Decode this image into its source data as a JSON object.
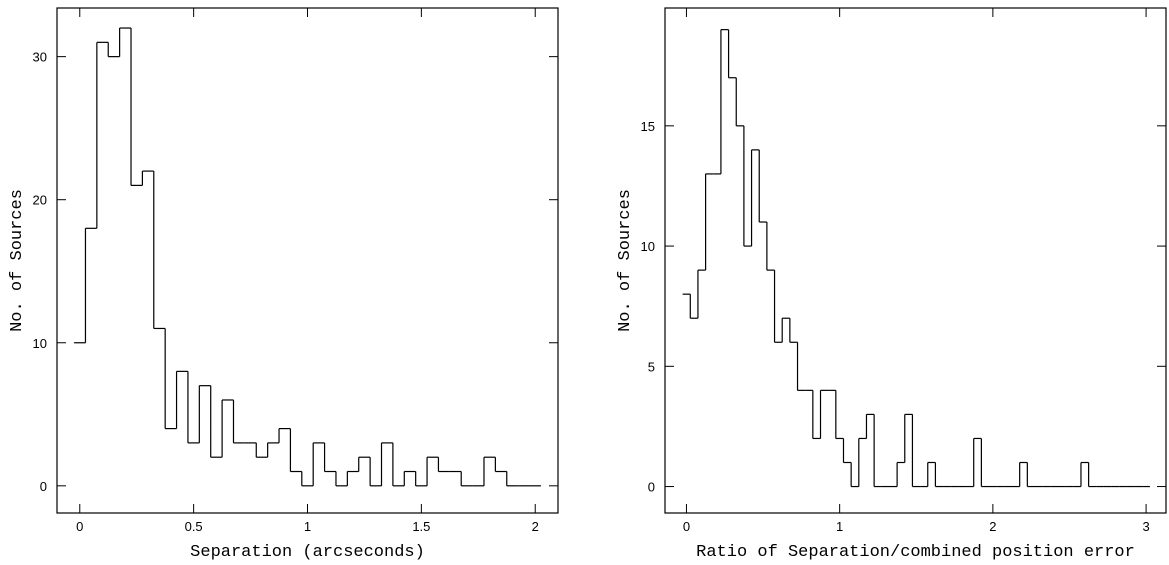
{
  "chart_data": [
    {
      "type": "histogram",
      "xlabel": "Separation (arcseconds)",
      "ylabel": "No. of Sources",
      "color": "#000000",
      "bins": [
        -0.025,
        0.025,
        0.075,
        0.125,
        0.175,
        0.225,
        0.275,
        0.325,
        0.375,
        0.425,
        0.475,
        0.525,
        0.575,
        0.625,
        0.675,
        0.725,
        0.775,
        0.825,
        0.875,
        0.925,
        0.975,
        1.025,
        1.075,
        1.125,
        1.175,
        1.225,
        1.275,
        1.325,
        1.375,
        1.425,
        1.475,
        1.525,
        1.575,
        1.625,
        1.675,
        1.725,
        1.775,
        1.825,
        1.875,
        1.925,
        1.975,
        2.025
      ],
      "values": [
        10,
        18,
        31,
        30,
        32,
        21,
        22,
        11,
        4,
        8,
        3,
        7,
        2,
        6,
        3,
        3,
        2,
        3,
        4,
        1,
        0,
        3,
        1,
        0,
        1,
        2,
        0,
        3,
        0,
        1,
        0,
        2,
        1,
        1,
        0,
        0,
        2,
        1,
        0,
        0,
        0
      ],
      "xlim": [
        -0.1,
        2.1
      ],
      "ylim": [
        -1.9,
        33.4
      ],
      "xticks": [
        0,
        0.5,
        1,
        1.5,
        2
      ],
      "yticks": [
        0,
        10,
        20,
        30
      ]
    },
    {
      "type": "histogram",
      "xlabel": "Ratio of Separation/combined position error",
      "ylabel": "No. of Sources",
      "color": "#000000",
      "bins": [
        -0.025,
        0.025,
        0.075,
        0.125,
        0.175,
        0.225,
        0.275,
        0.325,
        0.375,
        0.425,
        0.475,
        0.525,
        0.575,
        0.625,
        0.675,
        0.725,
        0.775,
        0.825,
        0.875,
        0.925,
        0.975,
        1.025,
        1.075,
        1.125,
        1.175,
        1.225,
        1.275,
        1.325,
        1.375,
        1.425,
        1.475,
        1.525,
        1.575,
        1.625,
        1.675,
        1.725,
        1.775,
        1.825,
        1.875,
        1.925,
        1.975,
        2.025,
        2.075,
        2.125,
        2.175,
        2.225,
        2.275,
        2.325,
        2.375,
        2.425,
        2.475,
        2.525,
        2.575,
        2.625,
        2.675,
        2.725,
        2.775,
        2.825,
        2.875,
        2.925,
        2.975,
        3.025
      ],
      "values": [
        8,
        7,
        9,
        13,
        13,
        19,
        17,
        15,
        10,
        14,
        11,
        9,
        6,
        7,
        6,
        4,
        4,
        2,
        4,
        4,
        2,
        1,
        0,
        2,
        3,
        0,
        0,
        0,
        1,
        3,
        0,
        0,
        1,
        0,
        0,
        0,
        0,
        0,
        2,
        0,
        0,
        0,
        0,
        0,
        1,
        0,
        0,
        0,
        0,
        0,
        0,
        0,
        1,
        0,
        0,
        0,
        0,
        0,
        0,
        0,
        0
      ],
      "xlim": [
        -0.14,
        3.13
      ],
      "ylim": [
        -1.1,
        19.9
      ],
      "xticks": [
        0,
        1,
        2,
        3
      ],
      "yticks": [
        0,
        5,
        10,
        15
      ]
    }
  ]
}
